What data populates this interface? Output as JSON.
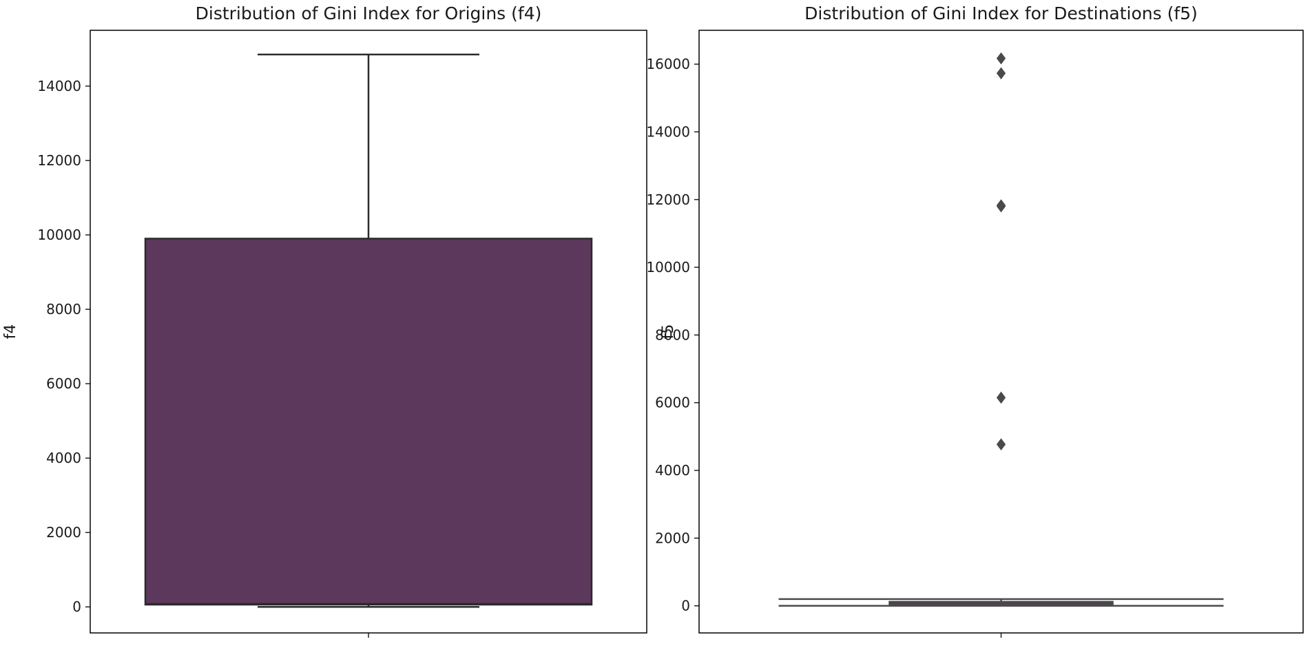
{
  "chart_data": [
    {
      "type": "box",
      "title": "Distribution of Gini Index for Origins (f4)",
      "xlabel": "",
      "ylabel": "f4",
      "ylim": [
        -700,
        15500
      ],
      "yticks": [
        0,
        2000,
        4000,
        6000,
        8000,
        10000,
        12000,
        14000
      ],
      "grid": false,
      "box_color": "#5d385d",
      "edge_color": "#2b2b2b",
      "stats": {
        "whisker_low": 0,
        "q1": 60,
        "median": 80,
        "q3": 9900,
        "whisker_high": 14850
      },
      "outliers": []
    },
    {
      "type": "box",
      "title": "Distribution of Gini Index for Destinations (f5)",
      "xlabel": "",
      "ylabel": "f5",
      "ylim": [
        -800,
        17000
      ],
      "yticks": [
        0,
        2000,
        4000,
        6000,
        8000,
        10000,
        12000,
        14000,
        16000
      ],
      "grid": false,
      "box_color": "#5d385d",
      "edge_color": "#4a4a4a",
      "stats": {
        "whisker_low": 0,
        "q1": 20,
        "median": 40,
        "q3": 120,
        "whisker_high": 200
      },
      "outliers": [
        4770,
        6150,
        11800,
        11830,
        15730,
        16170
      ]
    }
  ]
}
